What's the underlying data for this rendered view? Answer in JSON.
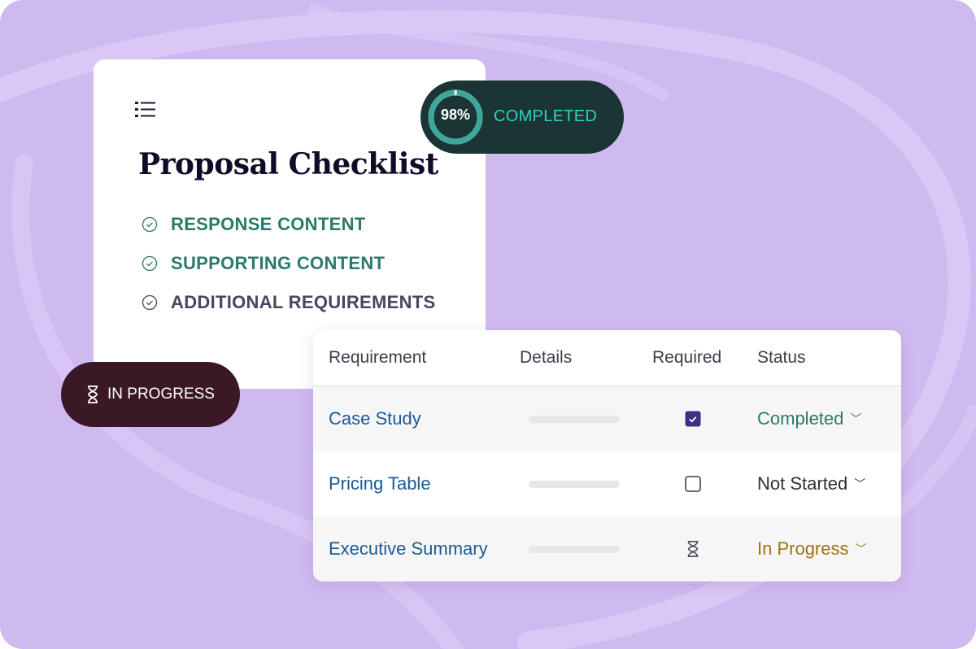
{
  "colors": {
    "background": "#cfbaf0",
    "completed_green": "#2a7a6a",
    "in_progress_amber": "#a0710f",
    "link_blue": "#1b5a93",
    "checkbox_purple": "#3d2f85",
    "completed_teal": "#2fd3c0"
  },
  "checklist_card": {
    "menu_icon": "list-icon",
    "title": "Proposal Checklist",
    "items": [
      {
        "label": "RESPONSE CONTENT",
        "icon": "check-circle-icon",
        "done": true
      },
      {
        "label": "SUPPORTING CONTENT",
        "icon": "check-circle-icon",
        "done": true
      },
      {
        "label": "ADDITIONAL REQUIREMENTS",
        "icon": "check-circle-icon",
        "done": false
      }
    ]
  },
  "completed_badge": {
    "percent": 98,
    "percent_label": "98%",
    "label": "COMPLETED"
  },
  "in_progress_badge": {
    "icon": "hourglass-icon",
    "label": "IN PROGRESS"
  },
  "table": {
    "headers": [
      "Requirement",
      "Details",
      "Required",
      "Status"
    ],
    "rows": [
      {
        "requirement": "Case Study",
        "required": "checked",
        "status": "Completed"
      },
      {
        "requirement": "Pricing Table",
        "required": "unchecked",
        "status": "Not Started"
      },
      {
        "requirement": "Executive Summary",
        "required": "pending",
        "status": "In Progress"
      }
    ]
  }
}
